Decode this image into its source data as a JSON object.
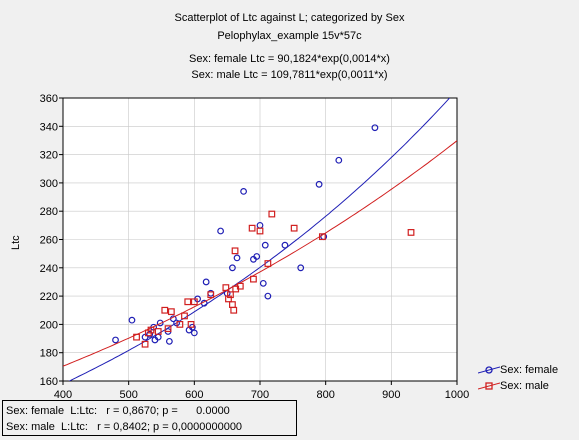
{
  "header": {
    "title": "Scatterplot of Ltc against L; categorized by Sex",
    "subtitle": "Pelophylax_example 15v*57c",
    "eq_female": "Sex: female Ltc = 90,1824*exp(0,0014*x)",
    "eq_male": "Sex: male Ltc = 109,7811*exp(0,0011*x)"
  },
  "stats": {
    "female": "Sex: female  L:Ltc:   r = 0,8670; p =      0.0000",
    "male": "Sex: male  L:Ltc:   r = 0,8402; p = 0,0000000000"
  },
  "legend": {
    "female": "Sex: female",
    "male": "Sex: male"
  },
  "colors": {
    "female": "#1f1fb5",
    "male": "#d11f1f",
    "plot_bg": "#ffffff",
    "grid": "#c8c8c8"
  },
  "chart_data": {
    "type": "scatter",
    "title": "Scatterplot of Ltc against L; categorized by Sex",
    "xlabel": "",
    "ylabel": "Ltc",
    "xlim": [
      400,
      1000
    ],
    "ylim": [
      160,
      360
    ],
    "xticks": [
      400,
      500,
      600,
      700,
      800,
      900,
      1000
    ],
    "yticks": [
      160,
      180,
      200,
      220,
      240,
      260,
      280,
      300,
      320,
      340,
      360
    ],
    "grid": true,
    "legend_position": "bottom-right",
    "series": [
      {
        "name": "Sex: female",
        "marker": "circle",
        "fit": {
          "a": 90.1824,
          "b": 0.0014
        },
        "points": [
          [
            480,
            189
          ],
          [
            505,
            203
          ],
          [
            525,
            191
          ],
          [
            532,
            193
          ],
          [
            538,
            198
          ],
          [
            540,
            189
          ],
          [
            545,
            191
          ],
          [
            548,
            201
          ],
          [
            560,
            195
          ],
          [
            562,
            188
          ],
          [
            568,
            204
          ],
          [
            573,
            201
          ],
          [
            592,
            196
          ],
          [
            597,
            198
          ],
          [
            600,
            194
          ],
          [
            605,
            218
          ],
          [
            615,
            215
          ],
          [
            618,
            230
          ],
          [
            625,
            222
          ],
          [
            640,
            266
          ],
          [
            650,
            222
          ],
          [
            658,
            240
          ],
          [
            665,
            247
          ],
          [
            675,
            294
          ],
          [
            690,
            246
          ],
          [
            695,
            248
          ],
          [
            700,
            270
          ],
          [
            705,
            229
          ],
          [
            708,
            256
          ],
          [
            712,
            220
          ],
          [
            738,
            256
          ],
          [
            762,
            240
          ],
          [
            790,
            299
          ],
          [
            797,
            262
          ],
          [
            820,
            316
          ],
          [
            875,
            339
          ]
        ]
      },
      {
        "name": "Sex: male",
        "marker": "square",
        "fit": {
          "a": 109.7811,
          "b": 0.0011
        },
        "points": [
          [
            512,
            191
          ],
          [
            525,
            186
          ],
          [
            530,
            194
          ],
          [
            534,
            196
          ],
          [
            545,
            195
          ],
          [
            555,
            210
          ],
          [
            560,
            197
          ],
          [
            565,
            209
          ],
          [
            578,
            200
          ],
          [
            585,
            206
          ],
          [
            590,
            216
          ],
          [
            595,
            200
          ],
          [
            600,
            216
          ],
          [
            625,
            221
          ],
          [
            648,
            226
          ],
          [
            652,
            218
          ],
          [
            655,
            221
          ],
          [
            658,
            214
          ],
          [
            660,
            210
          ],
          [
            662,
            252
          ],
          [
            663,
            225
          ],
          [
            670,
            227
          ],
          [
            688,
            268
          ],
          [
            690,
            232
          ],
          [
            700,
            266
          ],
          [
            712,
            243
          ],
          [
            718,
            278
          ],
          [
            752,
            268
          ],
          [
            795,
            262
          ],
          [
            930,
            265
          ]
        ]
      }
    ]
  }
}
